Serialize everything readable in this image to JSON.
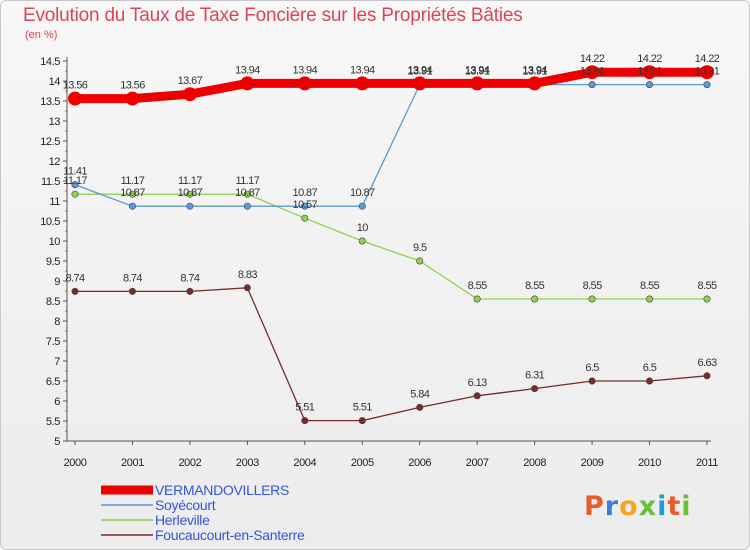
{
  "chart_data": {
    "type": "line",
    "title": "Evolution du Taux de Taxe Foncière sur les Propriétés Bâties",
    "unit_label": "(en %)",
    "x": [
      "2000",
      "2001",
      "2002",
      "2003",
      "2004",
      "2005",
      "2006",
      "2007",
      "2008",
      "2009",
      "2010",
      "2011"
    ],
    "ylim": [
      5,
      14.5
    ],
    "yticks": [
      "5",
      "5.5",
      "6",
      "6.5",
      "7",
      "7.5",
      "8",
      "8.5",
      "9",
      "9.5",
      "10",
      "10.5",
      "11",
      "11.5",
      "12",
      "12.5",
      "13",
      "13.5",
      "14",
      "14.5"
    ],
    "grid": false,
    "series": [
      {
        "name": "VERMANDOVILLERS",
        "color": "#ee0000",
        "values": [
          13.56,
          13.56,
          13.67,
          13.94,
          13.94,
          13.94,
          13.94,
          13.94,
          13.94,
          14.22,
          14.22,
          14.22
        ],
        "labels": [
          "13.56",
          "13.56",
          "13.67",
          "13.94",
          "13.94",
          "13.94",
          "13.94",
          "13.94",
          "13.94",
          "14.22",
          "14.22",
          "14.22"
        ]
      },
      {
        "name": "Soyécourt",
        "color": "#5b9bd5",
        "values": [
          11.41,
          10.87,
          10.87,
          10.87,
          10.87,
          10.87,
          13.91,
          13.91,
          13.91,
          13.91,
          13.91,
          13.91
        ],
        "labels": [
          "11.41",
          "10.87",
          "10.87",
          "10.87",
          "10.87",
          "10.87",
          "13.91",
          "13.91",
          "13.91",
          "13.91",
          "13.91",
          "13.91"
        ]
      },
      {
        "name": "Herleville",
        "color": "#8fd14f",
        "values": [
          11.17,
          11.17,
          11.17,
          11.17,
          10.57,
          10,
          9.5,
          8.55,
          8.55,
          8.55,
          8.55,
          8.55
        ],
        "labels": [
          "11.17",
          "11.17",
          "11.17",
          "11.17",
          "10.57",
          "10",
          "9.5",
          "8.55",
          "8.55",
          "8.55",
          "8.55",
          "8.55"
        ]
      },
      {
        "name": "Foucaucourt-en-Santerre",
        "color": "#7a2a2a",
        "values": [
          8.74,
          8.74,
          8.74,
          8.83,
          5.51,
          5.51,
          5.84,
          6.13,
          6.31,
          6.5,
          6.5,
          6.63
        ],
        "labels": [
          "8.74",
          "8.74",
          "8.74",
          "8.83",
          "5.51",
          "5.51",
          "5.84",
          "6.13",
          "6.31",
          "6.5",
          "6.5",
          "6.63"
        ]
      }
    ],
    "legend_position": "bottom-left"
  },
  "logo": {
    "text": "Proxiti",
    "colors": [
      "#e85c2c",
      "#3a7fd5",
      "#f5a623",
      "#6bbf3a",
      "#1b9fdc",
      "#e85c2c",
      "#6bbf3a"
    ]
  }
}
